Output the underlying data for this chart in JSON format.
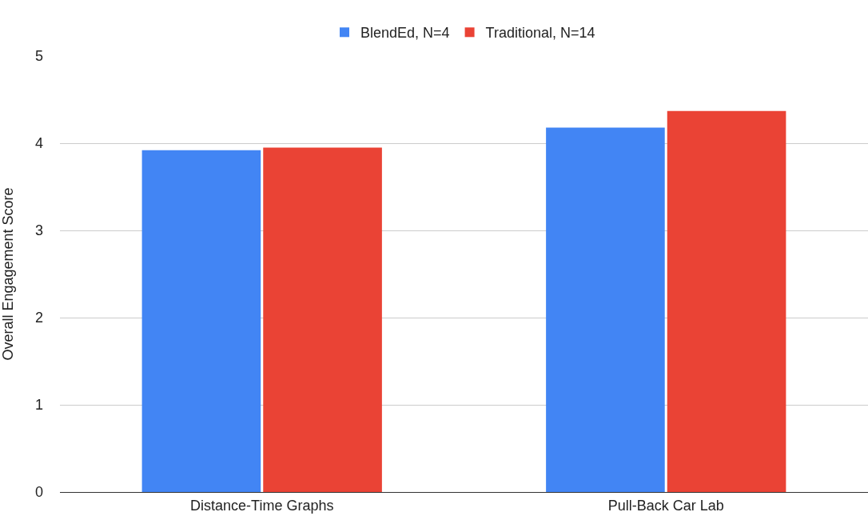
{
  "chart_data": {
    "type": "bar",
    "ylabel": "Overall Engagement Score",
    "categories": [
      "Distance-Time Graphs",
      "Pull-Back Car Lab"
    ],
    "series": [
      {
        "name": "BlendEd, N=4",
        "color": "#4285f4",
        "values": [
          3.92,
          4.18
        ]
      },
      {
        "name": "Traditional, N=14",
        "color": "#ea4335",
        "values": [
          3.95,
          4.37
        ]
      }
    ],
    "ylim": [
      0,
      5
    ],
    "yticks": [
      0,
      1,
      2,
      3,
      4,
      5
    ],
    "grid": "y",
    "legend": "top"
  }
}
